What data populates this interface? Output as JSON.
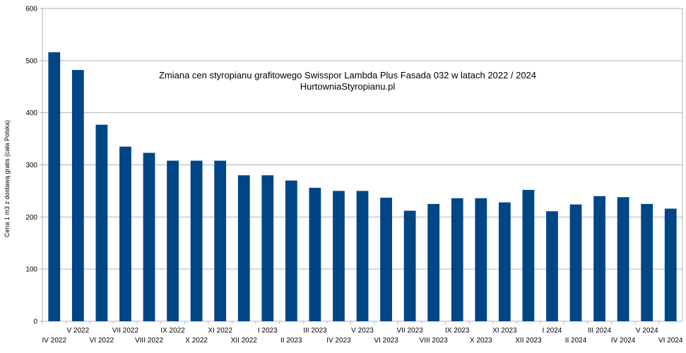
{
  "chart_data": {
    "type": "bar",
    "title": "Zmiana cen styropianu grafitowego Swisspor Lambda Plus Fasada 032 w latach 2022 / 2024",
    "subtitle": "HurtowniaStyropianu.pl",
    "xlabel": "",
    "ylabel": "Cena 1 m3 z dostawą gratis (cała Polska)",
    "ylim": [
      0,
      600
    ],
    "yticks": [
      0,
      100,
      200,
      300,
      400,
      500,
      600
    ],
    "grid": true,
    "legend": "none",
    "bar_color": "#004586",
    "categories": [
      "IV 2022",
      "V 2022",
      "VI 2022",
      "VII 2022",
      "VIII 2022",
      "IX 2022",
      "X 2022",
      "XI 2022",
      "XII 2022",
      "I 2023",
      "II 2023",
      "III 2023",
      "IV 2023",
      "V 2023",
      "VI 2023",
      "VII 2023",
      "VIII 2023",
      "IX 2023",
      "X 2023",
      "XI 2023",
      "XII 2023",
      "I 2024",
      "II 2024",
      "III 2024",
      "IV 2024",
      "V 2024",
      "VI 2024"
    ],
    "values": [
      516,
      482,
      377,
      335,
      323,
      308,
      308,
      308,
      280,
      280,
      270,
      256,
      250,
      250,
      237,
      212,
      225,
      236,
      236,
      228,
      252,
      211,
      224,
      240,
      238,
      225,
      216
    ]
  }
}
